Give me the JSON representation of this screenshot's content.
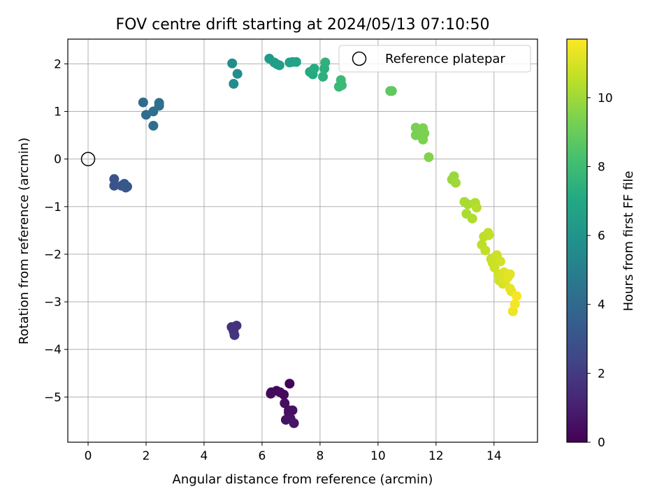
{
  "chart_data": {
    "type": "scatter",
    "title": "FOV centre drift starting at 2024/05/13 07:10:50",
    "xlabel": "Angular distance from reference (arcmin)",
    "ylabel": "Rotation from reference (arcmin)",
    "xlim": [
      -0.7,
      15.5
    ],
    "ylim": [
      -5.95,
      2.52
    ],
    "xticks": [
      0,
      2,
      4,
      6,
      8,
      10,
      12,
      14
    ],
    "xtick_labels": [
      "0",
      "2",
      "4",
      "6",
      "8",
      "10",
      "12",
      "14"
    ],
    "yticks": [
      2,
      1,
      0,
      -1,
      -2,
      -3,
      -4,
      -5
    ],
    "ytick_labels": [
      "2",
      "1",
      "0",
      "−1",
      "−2",
      "−3",
      "−4",
      "−5"
    ],
    "grid": true,
    "legend": {
      "position": "top-right",
      "entries": [
        "Reference platepar"
      ]
    },
    "reference_point": {
      "x": 0,
      "y": 0
    },
    "colorbar": {
      "label": "Hours from first FF file",
      "colormap": "viridis",
      "range": [
        0,
        11.7
      ],
      "ticks": [
        0,
        2,
        4,
        6,
        8,
        10
      ],
      "tick_labels": [
        "0",
        "2",
        "4",
        "6",
        "8",
        "10"
      ]
    },
    "series": [
      {
        "points": [
          {
            "x": 6.95,
            "y": -4.72,
            "c": 0.1
          },
          {
            "x": 6.32,
            "y": -4.9,
            "c": 0.2
          },
          {
            "x": 6.5,
            "y": -4.87,
            "c": 0.2
          },
          {
            "x": 6.62,
            "y": -4.9,
            "c": 0.3
          },
          {
            "x": 6.75,
            "y": -4.95,
            "c": 0.3
          },
          {
            "x": 6.3,
            "y": -4.93,
            "c": 0.3
          },
          {
            "x": 6.78,
            "y": -5.13,
            "c": 0.4
          },
          {
            "x": 6.92,
            "y": -5.28,
            "c": 0.4
          },
          {
            "x": 7.05,
            "y": -5.28,
            "c": 0.5
          },
          {
            "x": 6.92,
            "y": -5.33,
            "c": 0.5
          },
          {
            "x": 6.82,
            "y": -5.48,
            "c": 0.6
          },
          {
            "x": 6.98,
            "y": -5.45,
            "c": 0.6
          },
          {
            "x": 7.1,
            "y": -5.55,
            "c": 0.7
          },
          {
            "x": 4.95,
            "y": -3.53,
            "c": 1.6
          },
          {
            "x": 5.12,
            "y": -3.5,
            "c": 1.7
          },
          {
            "x": 5.02,
            "y": -3.62,
            "c": 1.7
          },
          {
            "x": 5.05,
            "y": -3.7,
            "c": 1.8
          },
          {
            "x": 0.9,
            "y": -0.42,
            "c": 3.0
          },
          {
            "x": 0.9,
            "y": -0.56,
            "c": 3.0
          },
          {
            "x": 1.15,
            "y": -0.56,
            "c": 3.1
          },
          {
            "x": 1.25,
            "y": -0.52,
            "c": 3.1
          },
          {
            "x": 1.3,
            "y": -0.6,
            "c": 3.2
          },
          {
            "x": 1.35,
            "y": -0.58,
            "c": 3.2
          },
          {
            "x": 1.9,
            "y": 1.19,
            "c": 4.1
          },
          {
            "x": 2.0,
            "y": 0.93,
            "c": 4.1
          },
          {
            "x": 2.25,
            "y": 1.0,
            "c": 4.2
          },
          {
            "x": 2.25,
            "y": 0.7,
            "c": 4.2
          },
          {
            "x": 2.45,
            "y": 1.18,
            "c": 4.3
          },
          {
            "x": 2.45,
            "y": 1.12,
            "c": 4.3
          },
          {
            "x": 4.97,
            "y": 2.01,
            "c": 5.6
          },
          {
            "x": 5.02,
            "y": 1.58,
            "c": 5.6
          },
          {
            "x": 5.15,
            "y": 1.79,
            "c": 5.7
          },
          {
            "x": 6.25,
            "y": 2.11,
            "c": 6.3
          },
          {
            "x": 6.42,
            "y": 2.03,
            "c": 6.4
          },
          {
            "x": 6.52,
            "y": 1.99,
            "c": 6.4
          },
          {
            "x": 6.6,
            "y": 1.97,
            "c": 6.5
          },
          {
            "x": 6.95,
            "y": 2.03,
            "c": 6.7
          },
          {
            "x": 7.05,
            "y": 2.04,
            "c": 6.7
          },
          {
            "x": 7.18,
            "y": 2.04,
            "c": 6.8
          },
          {
            "x": 7.65,
            "y": 1.83,
            "c": 7.1
          },
          {
            "x": 7.75,
            "y": 1.78,
            "c": 7.1
          },
          {
            "x": 7.8,
            "y": 1.9,
            "c": 7.2
          },
          {
            "x": 8.1,
            "y": 1.73,
            "c": 7.4
          },
          {
            "x": 8.15,
            "y": 1.9,
            "c": 7.4
          },
          {
            "x": 8.18,
            "y": 2.03,
            "c": 7.5
          },
          {
            "x": 8.65,
            "y": 1.52,
            "c": 7.8
          },
          {
            "x": 8.72,
            "y": 1.66,
            "c": 7.9
          },
          {
            "x": 8.75,
            "y": 1.55,
            "c": 7.9
          },
          {
            "x": 10.42,
            "y": 1.43,
            "c": 8.8
          },
          {
            "x": 10.48,
            "y": 1.43,
            "c": 8.8
          },
          {
            "x": 11.3,
            "y": 0.66,
            "c": 9.3
          },
          {
            "x": 11.3,
            "y": 0.5,
            "c": 9.3
          },
          {
            "x": 11.4,
            "y": 0.58,
            "c": 9.3
          },
          {
            "x": 11.55,
            "y": 0.65,
            "c": 9.4
          },
          {
            "x": 11.55,
            "y": 0.41,
            "c": 9.4
          },
          {
            "x": 11.6,
            "y": 0.54,
            "c": 9.4
          },
          {
            "x": 11.75,
            "y": 0.04,
            "c": 9.5
          },
          {
            "x": 12.55,
            "y": -0.43,
            "c": 9.9
          },
          {
            "x": 12.62,
            "y": -0.36,
            "c": 9.9
          },
          {
            "x": 12.68,
            "y": -0.5,
            "c": 10.0
          },
          {
            "x": 12.98,
            "y": -0.9,
            "c": 10.2
          },
          {
            "x": 13.05,
            "y": -1.15,
            "c": 10.2
          },
          {
            "x": 13.1,
            "y": -0.95,
            "c": 10.2
          },
          {
            "x": 13.25,
            "y": -1.25,
            "c": 10.3
          },
          {
            "x": 13.35,
            "y": -0.92,
            "c": 10.3
          },
          {
            "x": 13.4,
            "y": -1.02,
            "c": 10.4
          },
          {
            "x": 13.58,
            "y": -1.8,
            "c": 10.5
          },
          {
            "x": 13.65,
            "y": -1.63,
            "c": 10.5
          },
          {
            "x": 13.7,
            "y": -1.92,
            "c": 10.6
          },
          {
            "x": 13.8,
            "y": -1.55,
            "c": 10.6
          },
          {
            "x": 13.82,
            "y": -1.6,
            "c": 10.6
          },
          {
            "x": 13.9,
            "y": -2.1,
            "c": 10.7
          },
          {
            "x": 13.95,
            "y": -2.18,
            "c": 10.7
          },
          {
            "x": 14.02,
            "y": -2.28,
            "c": 10.8
          },
          {
            "x": 14.05,
            "y": -2.05,
            "c": 10.8
          },
          {
            "x": 14.1,
            "y": -2.02,
            "c": 10.8
          },
          {
            "x": 14.15,
            "y": -2.42,
            "c": 10.9
          },
          {
            "x": 14.18,
            "y": -2.55,
            "c": 10.9
          },
          {
            "x": 14.22,
            "y": -2.15,
            "c": 10.9
          },
          {
            "x": 14.25,
            "y": -2.45,
            "c": 11.0
          },
          {
            "x": 14.3,
            "y": -2.62,
            "c": 11.0
          },
          {
            "x": 14.35,
            "y": -2.38,
            "c": 11.1
          },
          {
            "x": 14.4,
            "y": -2.55,
            "c": 11.1
          },
          {
            "x": 14.48,
            "y": -2.48,
            "c": 11.2
          },
          {
            "x": 14.55,
            "y": -2.42,
            "c": 11.2
          },
          {
            "x": 14.55,
            "y": -2.72,
            "c": 11.3
          },
          {
            "x": 14.6,
            "y": -2.78,
            "c": 11.3
          },
          {
            "x": 14.65,
            "y": -3.2,
            "c": 11.4
          },
          {
            "x": 14.72,
            "y": -3.05,
            "c": 11.5
          },
          {
            "x": 14.78,
            "y": -2.88,
            "c": 11.6
          }
        ]
      }
    ]
  }
}
